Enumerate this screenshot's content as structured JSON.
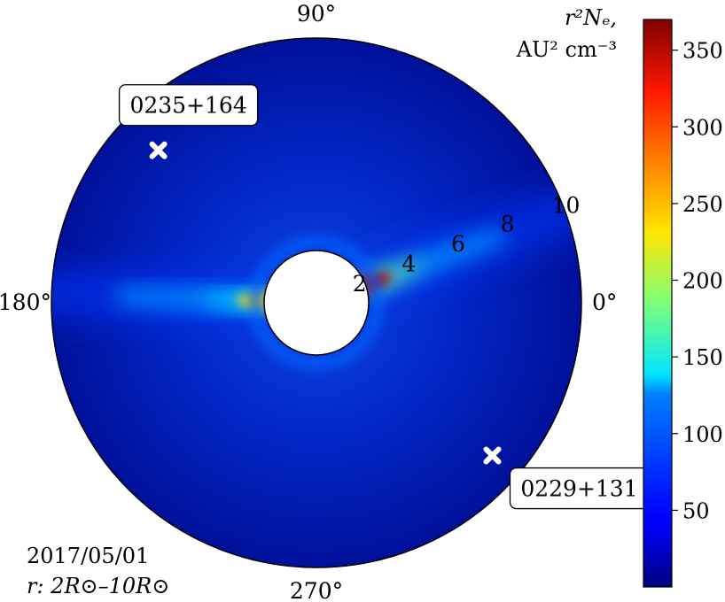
{
  "chart_data": {
    "type": "heatmap",
    "projection": "polar",
    "date": "2017/05/01",
    "radial_range_label": "r: 2R⊙–10R⊙",
    "radial_range": [
      2,
      10
    ],
    "radial_ticks": [
      "2",
      "4",
      "6",
      "8",
      "10"
    ],
    "angle_ticks": [
      "0°",
      "90°",
      "180°",
      "270°"
    ],
    "colorbar": {
      "label_line1": "r²Nₑ,",
      "label_line2": "AU² cm⁻³",
      "range": [
        0,
        370
      ],
      "ticks": [
        "50",
        "100",
        "150",
        "200",
        "250",
        "300",
        "350"
      ],
      "tick_values": [
        50,
        100,
        150,
        200,
        250,
        300,
        350
      ],
      "colormap": "jet"
    },
    "sources": [
      {
        "name": "0235+164",
        "angle_deg": 136,
        "r": 8.3
      },
      {
        "name": "0229+131",
        "angle_deg": 319,
        "r": 8.8
      }
    ],
    "features": [
      {
        "type": "streamer",
        "angle_deg": 20,
        "peak_value": 350
      },
      {
        "type": "streamer",
        "angle_deg": 178,
        "peak_value": 245
      }
    ]
  }
}
